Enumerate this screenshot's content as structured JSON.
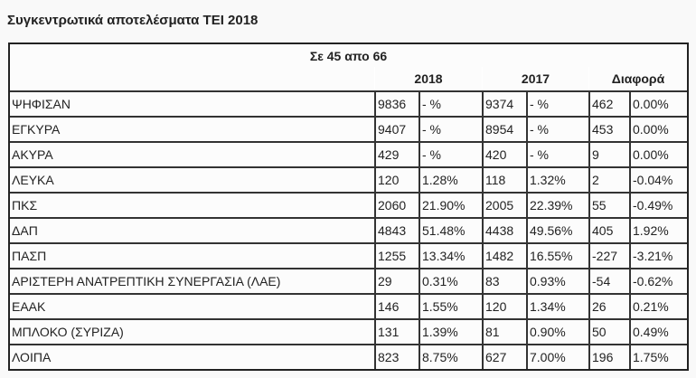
{
  "title": "Συγκεντρωτικά αποτελέσματα ΤΕΙ 2018",
  "table": {
    "caption": "Σε 45 απο 66",
    "headers": [
      "2018",
      "2017",
      "Διαφορά"
    ],
    "rows": [
      [
        "ΨΗΦΙΣΑΝ",
        "9836",
        "- %",
        "9374",
        "- %",
        "462",
        "0.00%"
      ],
      [
        "ΕΓΚΥΡΑ",
        "9407",
        "- %",
        "8954",
        "- %",
        "453",
        "0.00%"
      ],
      [
        "ΑΚΥΡΑ",
        "429",
        "- %",
        "420",
        "- %",
        "9",
        "0.00%"
      ],
      [
        "ΛΕΥΚΑ",
        "120",
        "1.28%",
        "118",
        "1.32%",
        "2",
        "-0.04%"
      ],
      [
        "ΠΚΣ",
        "2060",
        "21.90%",
        "2005",
        "22.39%",
        "55",
        "-0.49%"
      ],
      [
        "ΔΑΠ",
        "4843",
        "51.48%",
        "4438",
        "49.56%",
        "405",
        "1.92%"
      ],
      [
        "ΠΑΣΠ",
        "1255",
        "13.34%",
        "1482",
        "16.55%",
        "-227",
        "-3.21%"
      ],
      [
        "ΑΡΙΣΤΕΡΗ ΑΝΑΤΡΕΠΤΙΚΗ ΣΥΝΕΡΓΑΣΙΑ (ΛΑΕ)",
        "29",
        "0.31%",
        "83",
        "0.93%",
        "-54",
        "-0.62%"
      ],
      [
        "ΕΑΑΚ",
        "146",
        "1.55%",
        "120",
        "1.34%",
        "26",
        "0.21%"
      ],
      [
        "ΜΠΛΟΚΟ (ΣΥΡΙΖΑ)",
        "131",
        "1.39%",
        "81",
        "0.90%",
        "50",
        "0.49%"
      ],
      [
        "ΛΟΙΠΑ",
        "823",
        "8.75%",
        "627",
        "7.00%",
        "196",
        "1.75%"
      ]
    ]
  }
}
